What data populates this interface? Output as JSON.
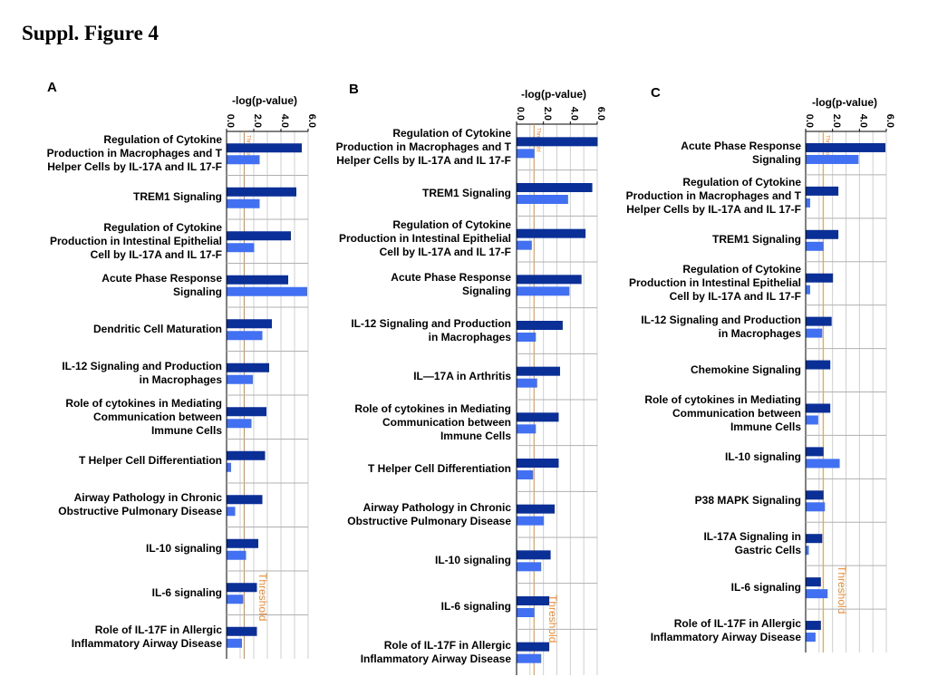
{
  "figure_title": "Suppl. Figure 4",
  "colors": {
    "series1": "#0a2f96",
    "series2": "#4270f2",
    "threshold": "#ee8a33",
    "grid": "#cfcfcf",
    "separator": "#b0b0b0"
  },
  "chart_data": [
    {
      "panel": "A",
      "type": "bar",
      "orientation": "horizontal",
      "xlabel": "-log(p-value)",
      "xlim": [
        0,
        6
      ],
      "xticks": [
        "0.0",
        "2.0",
        "4.0",
        "6.0"
      ],
      "threshold": 1.3,
      "threshold_label": "Threshold",
      "categories": [
        "Regulation of Cytokine\nProduction in Macrophages and T\nHelper Cells by IL-17A and IL 17-F",
        "TREM1 Signaling",
        "Regulation of Cytokine\nProduction in Intestinal Epithelial\nCell  by IL-17A and IL 17-F",
        "Acute Phase Response\nSignaling",
        "Dendritic Cell Maturation",
        "IL-12 Signaling and Production\nin Macrophages",
        "Role of cytokines in Mediating\nCommunication between\nImmune Cells",
        "T Helper Cell Differentiation",
        "Airway Pathology in Chronic\nObstructive Pulmonary Disease",
        "IL-10 signaling",
        "IL-6 signaling",
        "Role of IL-17F in Allergic\nInflammatory Airway Disease"
      ],
      "series": [
        {
          "values": [
            5.5,
            5.1,
            4.7,
            4.5,
            3.3,
            3.1,
            2.9,
            2.8,
            2.6,
            2.3,
            2.2,
            2.2
          ]
        },
        {
          "values": [
            2.4,
            2.4,
            2.0,
            5.9,
            2.6,
            1.9,
            1.8,
            0.3,
            0.6,
            1.4,
            1.2,
            1.1
          ]
        }
      ]
    },
    {
      "panel": "B",
      "type": "bar",
      "orientation": "horizontal",
      "xlabel": "-log(p-value)",
      "xlim": [
        0,
        6
      ],
      "xticks": [
        "0.0",
        "2.0",
        "4.0",
        "6.0"
      ],
      "threshold": 1.3,
      "threshold_label": "Threshold",
      "categories": [
        "Regulation of Cytokine\nProduction in Macrophages and T\nHelper Cells by IL-17A and IL 17-F",
        "TREM1 Signaling",
        "Regulation of Cytokine\nProduction in Intestinal Epithelial\nCell  by IL-17A and IL 17-F",
        "Acute Phase Response\nSignaling",
        "IL-12 Signaling and Production\nin Macrophages",
        "IL—17A in Arthritis",
        "Role of cytokines in Mediating\nCommunication between\nImmune Cells",
        "T Helper Cell Differentiation",
        "Airway Pathology in Chronic\nObstructive Pulmonary Disease",
        "IL-10 signaling",
        "IL-6 signaling",
        "Role of IL-17F in Allergic\nInflammatory Airway Disease"
      ],
      "series": [
        {
          "values": [
            6.0,
            5.6,
            5.1,
            4.8,
            3.4,
            3.2,
            3.1,
            3.1,
            2.8,
            2.5,
            2.4,
            2.4
          ]
        },
        {
          "values": [
            1.3,
            3.8,
            1.1,
            3.9,
            1.4,
            1.5,
            1.4,
            1.2,
            2.0,
            1.8,
            1.3,
            1.8
          ]
        }
      ]
    },
    {
      "panel": "C",
      "type": "bar",
      "orientation": "horizontal",
      "xlabel": "-log(p-value)",
      "xlim": [
        0,
        6
      ],
      "xticks": [
        "0.0",
        "2.0",
        "4.0",
        "6.0"
      ],
      "threshold": 1.3,
      "threshold_label": "Threshold",
      "categories": [
        "Acute Phase Response\nSignaling",
        "Regulation of Cytokine\nProduction in Macrophages and T\nHelper Cells by IL-17A and IL 17-F",
        "TREM1 Signaling",
        "Regulation of Cytokine\nProduction in Intestinal Epithelial\nCell  by IL-17A and IL 17-F",
        "IL-12 Signaling and Production\nin Macrophages",
        "Chemokine Signaling",
        "Role of cytokines in Mediating\nCommunication between\nImmune Cells",
        "IL-10 signaling",
        "P38 MAPK Signaling",
        "IL-17A Signaling in\nGastric Cells",
        "IL-6 signaling",
        "Role of IL-17F in Allergic\nInflammatory Airway Disease"
      ],
      "series": [
        {
          "values": [
            5.9,
            2.4,
            2.4,
            2.0,
            1.9,
            1.8,
            1.8,
            1.3,
            1.3,
            1.2,
            1.1,
            1.1
          ]
        },
        {
          "values": [
            3.9,
            0.3,
            1.3,
            0.3,
            1.2,
            0.0,
            0.9,
            2.5,
            1.4,
            0.2,
            1.6,
            0.7
          ]
        }
      ]
    }
  ]
}
